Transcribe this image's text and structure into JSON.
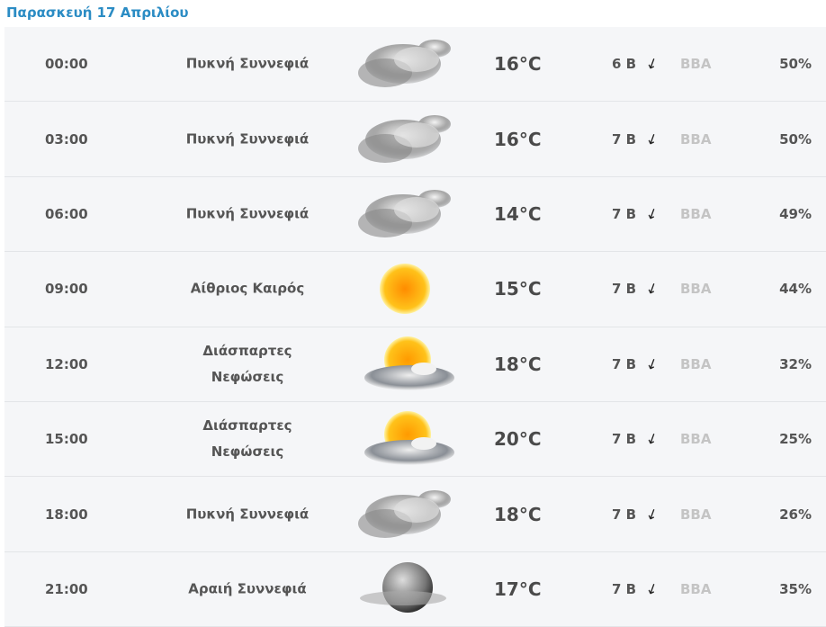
{
  "header": {
    "title": "Παρασκευή 17 Απριλίου"
  },
  "rows": [
    {
      "time": "00:00",
      "condition": "Πυκνή Συννεφιά",
      "icon": "cloudy-icon",
      "temp": "16°C",
      "wind": "6 Β",
      "dir": "ΒΒΑ",
      "humidity": "50%"
    },
    {
      "time": "03:00",
      "condition": "Πυκνή Συννεφιά",
      "icon": "cloudy-icon",
      "temp": "16°C",
      "wind": "7 Β",
      "dir": "ΒΒΑ",
      "humidity": "50%"
    },
    {
      "time": "06:00",
      "condition": "Πυκνή Συννεφιά",
      "icon": "cloudy-icon",
      "temp": "14°C",
      "wind": "7 Β",
      "dir": "ΒΒΑ",
      "humidity": "49%"
    },
    {
      "time": "09:00",
      "condition": "Αίθριος Καιρός",
      "icon": "sun-icon",
      "temp": "15°C",
      "wind": "7 Β",
      "dir": "ΒΒΑ",
      "humidity": "44%"
    },
    {
      "time": "12:00",
      "condition": "Διάσπαρτες Νεφώσεις",
      "icon": "partly-cloudy-icon",
      "temp": "18°C",
      "wind": "7 Β",
      "dir": "ΒΒΑ",
      "humidity": "32%"
    },
    {
      "time": "15:00",
      "condition": "Διάσπαρτες Νεφώσεις",
      "icon": "partly-cloudy-icon",
      "temp": "20°C",
      "wind": "7 Β",
      "dir": "ΒΒΑ",
      "humidity": "25%"
    },
    {
      "time": "18:00",
      "condition": "Πυκνή Συννεφιά",
      "icon": "cloudy-icon",
      "temp": "18°C",
      "wind": "7 Β",
      "dir": "ΒΒΑ",
      "humidity": "26%"
    },
    {
      "time": "21:00",
      "condition": "Αραιή Συννεφιά",
      "icon": "moon-cloud-icon",
      "temp": "17°C",
      "wind": "7 Β",
      "dir": "ΒΒΑ",
      "humidity": "35%"
    }
  ],
  "colors": {
    "title": "#2b8cc4",
    "row_bg": "#f5f6f8",
    "direction": "#c4c4c4"
  }
}
